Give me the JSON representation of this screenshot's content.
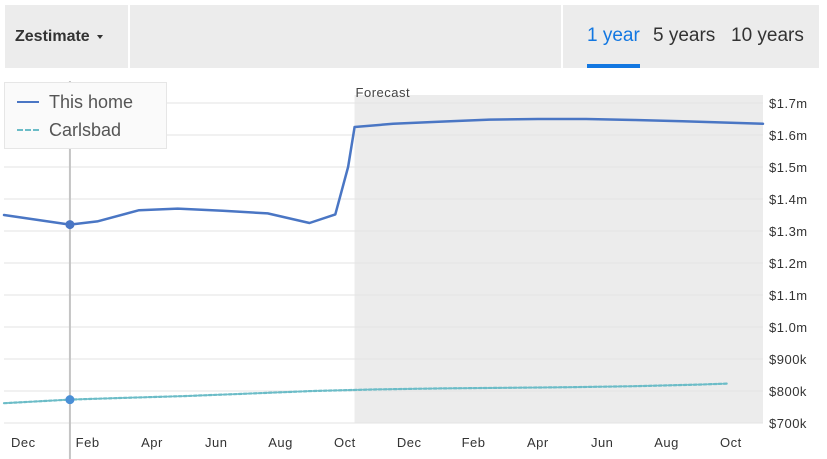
{
  "header": {
    "dropdown_label": "Zestimate",
    "tabs": [
      {
        "label": "1 year",
        "active": true
      },
      {
        "label": "5 years",
        "active": false
      },
      {
        "label": "10 years",
        "active": false
      }
    ]
  },
  "colors": {
    "accent": "#1277e1",
    "this_home": "#4a76c4",
    "carlsbad": "#6bbcc7",
    "forecast_bg": "#ececec",
    "cursor_line": "#c4c4c4"
  },
  "chart_data": {
    "type": "line",
    "forecast_label": "Forecast",
    "forecast_start": 10.3,
    "x_tick_labels": [
      "Dec",
      "Feb",
      "Apr",
      "Jun",
      "Aug",
      "Oct",
      "Dec",
      "Feb",
      "Apr",
      "Jun",
      "Aug",
      "Oct"
    ],
    "x_tick_positions": [
      0,
      2,
      4,
      6,
      8,
      10,
      12,
      14,
      16,
      18,
      20,
      22
    ],
    "xlim": [
      -0.6,
      23
    ],
    "ylim": [
      700,
      1700
    ],
    "y_ticks": [
      700,
      800,
      900,
      1000,
      1100,
      1200,
      1300,
      1400,
      1500,
      1600,
      1700
    ],
    "y_tick_labels": [
      "$700k",
      "$800k",
      "$900k",
      "$1.0m",
      "$1.1m",
      "$1.2m",
      "$1.3m",
      "$1.4m",
      "$1.5m",
      "$1.6m",
      "$1.7m"
    ],
    "grid": true,
    "legend_position": "top-left",
    "cursor_x": 1.45,
    "series": [
      {
        "name": "This home",
        "style": "solid",
        "x": [
          -0.6,
          1.45,
          2.3,
          3.6,
          4.8,
          6.2,
          7.6,
          8.9,
          9.7,
          10.1,
          10.3,
          11.5,
          13,
          14.5,
          16,
          17.5,
          19,
          20.5,
          22,
          23
        ],
        "y": [
          1350,
          1320,
          1330,
          1365,
          1370,
          1363,
          1355,
          1325,
          1352,
          1500,
          1625,
          1635,
          1642,
          1648,
          1650,
          1650,
          1647,
          1643,
          1638,
          1635
        ]
      },
      {
        "name": "Carlsbad",
        "style": "dashed",
        "x": [
          -0.6,
          1.45,
          3,
          5,
          7,
          9,
          11,
          13,
          15,
          17,
          19,
          21,
          21.9
        ],
        "y": [
          762,
          773,
          778,
          784,
          792,
          800,
          805,
          808,
          810,
          812,
          815,
          820,
          823
        ]
      }
    ]
  }
}
